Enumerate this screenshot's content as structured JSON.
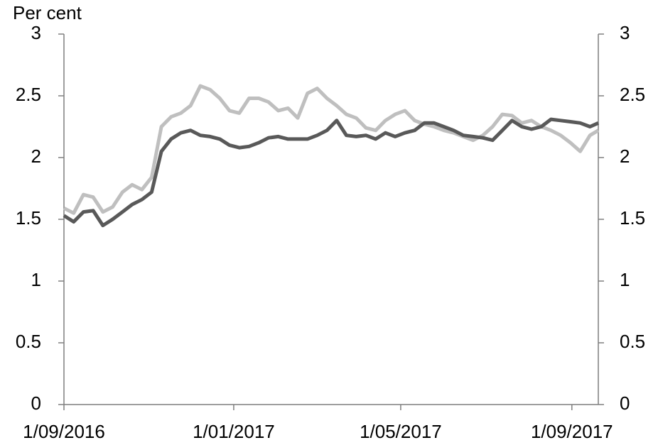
{
  "chart_data": {
    "type": "line",
    "y_label": "Per cent",
    "x": [
      "2016-09-01",
      "2016-09-08",
      "2016-09-15",
      "2016-09-22",
      "2016-09-29",
      "2016-10-06",
      "2016-10-13",
      "2016-10-20",
      "2016-10-27",
      "2016-11-03",
      "2016-11-10",
      "2016-11-17",
      "2016-11-24",
      "2016-12-01",
      "2016-12-08",
      "2016-12-15",
      "2016-12-22",
      "2016-12-29",
      "2017-01-05",
      "2017-01-12",
      "2017-01-19",
      "2017-01-26",
      "2017-02-02",
      "2017-02-09",
      "2017-02-16",
      "2017-02-23",
      "2017-03-02",
      "2017-03-09",
      "2017-03-16",
      "2017-03-23",
      "2017-03-30",
      "2017-04-06",
      "2017-04-13",
      "2017-04-20",
      "2017-04-27",
      "2017-05-04",
      "2017-05-11",
      "2017-05-18",
      "2017-05-25",
      "2017-06-01",
      "2017-06-08",
      "2017-06-15",
      "2017-06-22",
      "2017-06-29",
      "2017-07-06",
      "2017-07-13",
      "2017-07-20",
      "2017-07-27",
      "2017-08-03",
      "2017-08-10",
      "2017-08-17",
      "2017-08-24",
      "2017-08-31",
      "2017-09-07",
      "2017-09-14",
      "2017-09-20"
    ],
    "series": [
      {
        "color": "#bfbfbf",
        "values": [
          1.59,
          1.55,
          1.7,
          1.68,
          1.56,
          1.6,
          1.72,
          1.78,
          1.74,
          1.84,
          2.25,
          2.33,
          2.36,
          2.42,
          2.58,
          2.55,
          2.48,
          2.38,
          2.36,
          2.48,
          2.48,
          2.45,
          2.38,
          2.4,
          2.32,
          2.52,
          2.56,
          2.48,
          2.42,
          2.35,
          2.32,
          2.24,
          2.22,
          2.3,
          2.35,
          2.38,
          2.3,
          2.27,
          2.25,
          2.22,
          2.2,
          2.17,
          2.14,
          2.18,
          2.25,
          2.35,
          2.34,
          2.28,
          2.3,
          2.25,
          2.22,
          2.18,
          2.12,
          2.05,
          2.18,
          2.22
        ]
      },
      {
        "color": "#595959",
        "values": [
          1.53,
          1.48,
          1.56,
          1.57,
          1.45,
          1.5,
          1.56,
          1.62,
          1.66,
          1.72,
          2.05,
          2.15,
          2.2,
          2.22,
          2.18,
          2.17,
          2.15,
          2.1,
          2.08,
          2.09,
          2.12,
          2.16,
          2.17,
          2.15,
          2.15,
          2.15,
          2.18,
          2.22,
          2.3,
          2.18,
          2.17,
          2.18,
          2.15,
          2.2,
          2.17,
          2.2,
          2.22,
          2.28,
          2.28,
          2.25,
          2.22,
          2.18,
          2.17,
          2.16,
          2.14,
          2.22,
          2.3,
          2.25,
          2.23,
          2.25,
          2.31,
          2.3,
          2.29,
          2.28,
          2.25,
          2.28
        ]
      }
    ],
    "xlim": [
      "2016-09-01",
      "2017-09-20"
    ],
    "xticks": [
      {
        "value": "2016-09-01",
        "label": "1/09/2016"
      },
      {
        "value": "2017-01-01",
        "label": "1/01/2017"
      },
      {
        "value": "2017-05-01",
        "label": "1/05/2017"
      },
      {
        "value": "2017-09-01",
        "label": "1/09/2017"
      }
    ],
    "ylim": [
      0,
      3
    ],
    "yticks": [
      0,
      0.5,
      1,
      1.5,
      2,
      2.5,
      3
    ],
    "y2lim": [
      0,
      3
    ],
    "y2ticks": [
      0,
      0.5,
      1,
      1.5,
      2,
      2.5,
      3
    ]
  }
}
